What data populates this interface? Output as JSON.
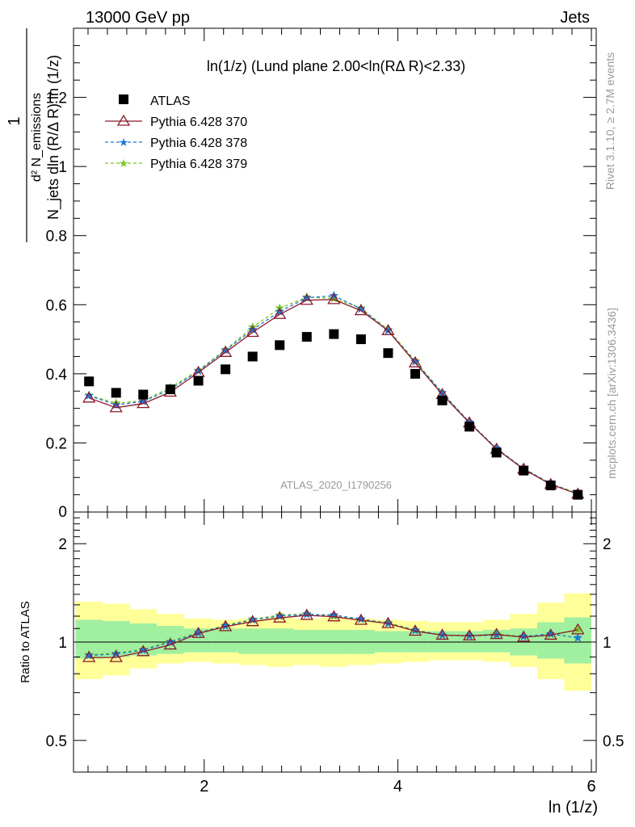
{
  "header": {
    "left": "13000 GeV pp",
    "right": "Jets"
  },
  "main_title": "ln(1/z) (Lund plane 2.00<ln(RΔ R)<2.33)",
  "ylabel_lines": [
    "1",
    "d² N_emissions",
    "N_jets dln (R/Δ R) ln (1/z)"
  ],
  "analysis_id": "ATLAS_2020_I1790256",
  "side_labels": {
    "rivet": "Rivet 3.1.10, ≥ 2.7M events",
    "mcplots": "mcplots.cern.ch [arXiv:1306.3436]"
  },
  "ratio_ylabel": "Ratio to ATLAS",
  "xlabel": "ln (1/z)",
  "colors": {
    "atlas": "#000000",
    "p370": "#8b1a2b",
    "p378": "#1e78d8",
    "p379": "#7cc820",
    "band_inner": "#a0f0a0",
    "band_outer": "#ffff99"
  },
  "chart_data": [
    {
      "type": "line",
      "xlim": [
        0.65,
        6.05
      ],
      "ylim": [
        0,
        1.4
      ],
      "x_ticks": [
        2,
        4,
        6
      ],
      "y_ticks": [
        0.2,
        0.4,
        0.6,
        0.8,
        1,
        1.2
      ],
      "y_tick_labels": [
        "0.2",
        "0.4",
        "0.6",
        "0.8",
        "1",
        "1.2"
      ],
      "x": [
        0.81,
        1.09,
        1.37,
        1.65,
        1.94,
        2.22,
        2.5,
        2.78,
        3.06,
        3.34,
        3.62,
        3.9,
        4.18,
        4.46,
        4.74,
        5.02,
        5.3,
        5.58,
        5.86
      ],
      "series": [
        {
          "name": "ATLAS",
          "style": "marker",
          "marker": "square",
          "values": [
            0.378,
            0.345,
            0.34,
            0.355,
            0.38,
            0.413,
            0.45,
            0.483,
            0.507,
            0.515,
            0.5,
            0.46,
            0.4,
            0.323,
            0.247,
            0.172,
            0.12,
            0.077,
            0.05
          ]
        },
        {
          "name": "Pythia 6.428 370",
          "style": "line-triangle",
          "values": [
            0.33,
            0.302,
            0.314,
            0.347,
            0.404,
            0.462,
            0.52,
            0.572,
            0.613,
            0.615,
            0.583,
            0.525,
            0.432,
            0.34,
            0.258,
            0.182,
            0.124,
            0.08,
            0.052
          ]
        },
        {
          "name": "Pythia 6.428 378",
          "style": "dash-star",
          "values": [
            0.337,
            0.31,
            0.32,
            0.355,
            0.408,
            0.468,
            0.528,
            0.58,
            0.62,
            0.626,
            0.588,
            0.525,
            0.435,
            0.345,
            0.26,
            0.184,
            0.126,
            0.082,
            0.052
          ]
        },
        {
          "name": "Pythia 6.428 379",
          "style": "dash-star",
          "values": [
            0.338,
            0.315,
            0.322,
            0.36,
            0.41,
            0.47,
            0.535,
            0.59,
            0.622,
            0.618,
            0.59,
            0.528,
            0.438,
            0.345,
            0.26,
            0.184,
            0.126,
            0.082,
            0.055
          ]
        }
      ]
    },
    {
      "type": "line",
      "ylabel": "Ratio to ATLAS",
      "xlim": [
        0.65,
        6.05
      ],
      "ylim": [
        0.4,
        2.5
      ],
      "log_y": true,
      "x_ticks": [
        2,
        4,
        6
      ],
      "x_tick_labels": [
        "2",
        "4",
        "6"
      ],
      "y_ticks": [
        0.5,
        1,
        2
      ],
      "y_tick_labels": [
        "0.5",
        "1",
        "2"
      ],
      "x_edges": [
        0.67,
        0.95,
        1.23,
        1.51,
        1.79,
        2.08,
        2.36,
        2.64,
        2.92,
        3.2,
        3.48,
        3.76,
        4.04,
        4.32,
        4.6,
        4.88,
        5.16,
        5.44,
        5.72,
        6.0
      ],
      "band_inner_low": [
        0.89,
        0.9,
        0.91,
        0.92,
        0.93,
        0.93,
        0.92,
        0.92,
        0.92,
        0.92,
        0.92,
        0.93,
        0.93,
        0.93,
        0.93,
        0.93,
        0.91,
        0.89,
        0.86
      ],
      "band_inner_high": [
        1.17,
        1.16,
        1.14,
        1.12,
        1.1,
        1.1,
        1.1,
        1.1,
        1.09,
        1.09,
        1.09,
        1.08,
        1.08,
        1.08,
        1.08,
        1.09,
        1.1,
        1.15,
        1.19
      ],
      "band_outer_low": [
        0.77,
        0.79,
        0.83,
        0.86,
        0.87,
        0.86,
        0.85,
        0.84,
        0.85,
        0.84,
        0.85,
        0.86,
        0.87,
        0.88,
        0.88,
        0.87,
        0.84,
        0.77,
        0.71
      ],
      "band_outer_high": [
        1.33,
        1.31,
        1.26,
        1.22,
        1.18,
        1.17,
        1.18,
        1.19,
        1.18,
        1.19,
        1.18,
        1.17,
        1.16,
        1.15,
        1.15,
        1.17,
        1.22,
        1.32,
        1.41
      ],
      "x": [
        0.81,
        1.09,
        1.37,
        1.65,
        1.94,
        2.22,
        2.5,
        2.78,
        3.06,
        3.34,
        3.62,
        3.9,
        4.18,
        4.46,
        4.74,
        5.02,
        5.3,
        5.58,
        5.86
      ],
      "series": [
        {
          "name": "Pythia 6.428 370",
          "style": "line-triangle",
          "values": [
            0.897,
            0.897,
            0.935,
            0.98,
            1.063,
            1.115,
            1.155,
            1.185,
            1.208,
            1.195,
            1.166,
            1.14,
            1.08,
            1.05,
            1.045,
            1.055,
            1.035,
            1.05,
            1.09
          ]
        },
        {
          "name": "Pythia 6.428 378",
          "style": "dash-star",
          "values": [
            0.91,
            0.92,
            0.945,
            1.0,
            1.065,
            1.12,
            1.17,
            1.2,
            1.215,
            1.21,
            1.175,
            1.14,
            1.085,
            1.05,
            1.045,
            1.05,
            1.04,
            1.06,
            1.03
          ]
        },
        {
          "name": "Pythia 6.428 379",
          "style": "dash-star",
          "values": [
            0.915,
            0.925,
            0.95,
            1.005,
            1.07,
            1.125,
            1.175,
            1.21,
            1.22,
            1.2,
            1.175,
            1.145,
            1.09,
            1.05,
            1.045,
            1.06,
            1.04,
            1.055,
            1.09
          ]
        }
      ]
    }
  ]
}
